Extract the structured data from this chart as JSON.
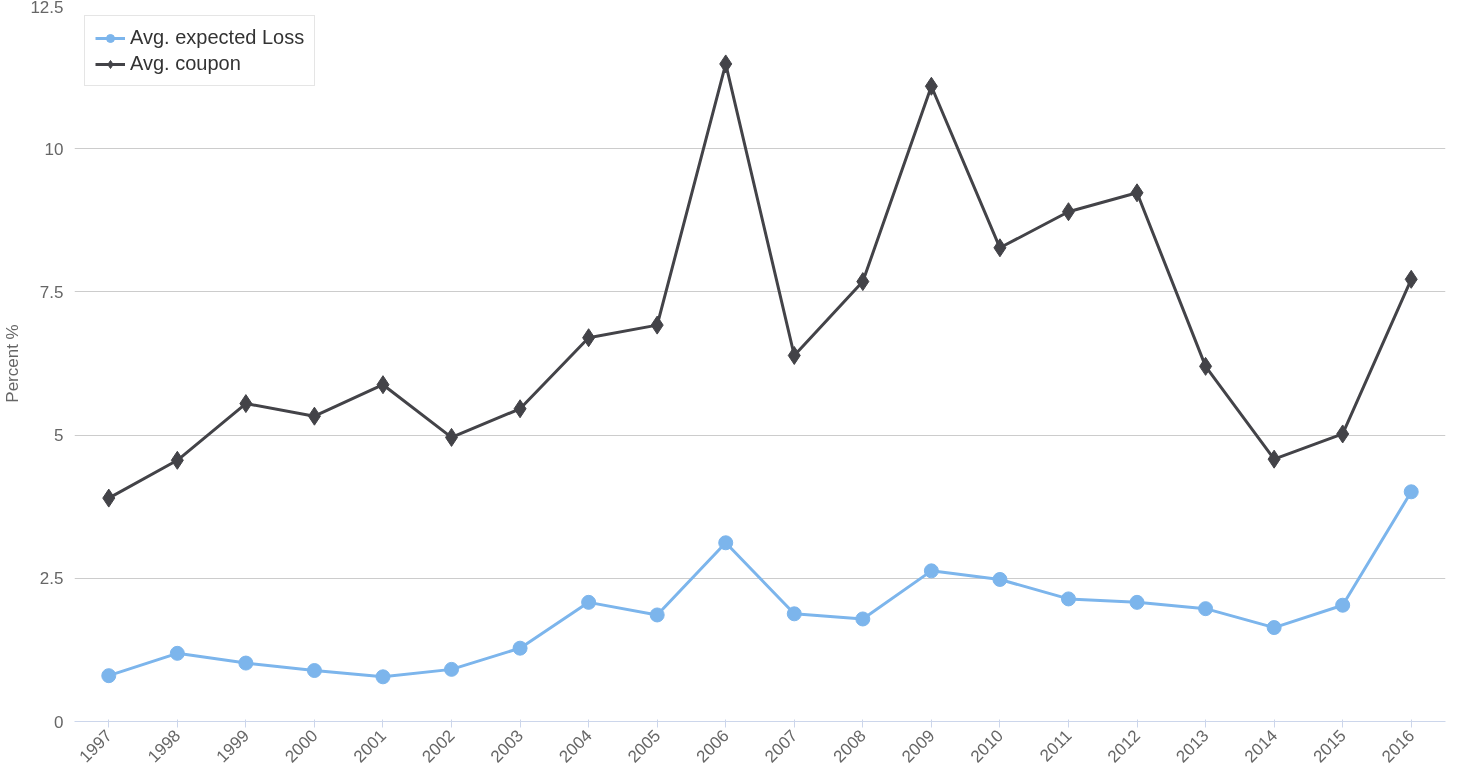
{
  "chart_data": {
    "type": "line",
    "ylabel": "Percent %",
    "categories": [
      "1997",
      "1998",
      "1999",
      "2000",
      "2001",
      "2002",
      "2003",
      "2004",
      "2005",
      "2006",
      "2007",
      "2008",
      "2009",
      "2010",
      "2011",
      "2012",
      "2013",
      "2014",
      "2015",
      "2016"
    ],
    "series": [
      {
        "name": "Avg. expected Loss",
        "color": "#7cb5ec",
        "marker": "circle",
        "values": [
          0.8,
          1.19,
          1.02,
          0.89,
          0.78,
          0.91,
          1.28,
          2.08,
          1.86,
          3.12,
          1.88,
          1.79,
          2.63,
          2.48,
          2.14,
          2.08,
          1.97,
          1.64,
          2.03,
          4.01
        ]
      },
      {
        "name": "Avg. coupon",
        "color": "#434348",
        "marker": "diamond",
        "values": [
          3.9,
          4.56,
          5.55,
          5.33,
          5.88,
          4.96,
          5.46,
          6.7,
          6.92,
          11.48,
          6.39,
          7.68,
          11.09,
          8.27,
          8.9,
          9.23,
          6.2,
          4.58,
          5.02,
          7.72
        ]
      }
    ],
    "ylim": [
      0,
      12.5
    ],
    "yticks": [
      0,
      2.5,
      5,
      7.5,
      10,
      12.5
    ],
    "grid": "y",
    "legend": "top left"
  }
}
